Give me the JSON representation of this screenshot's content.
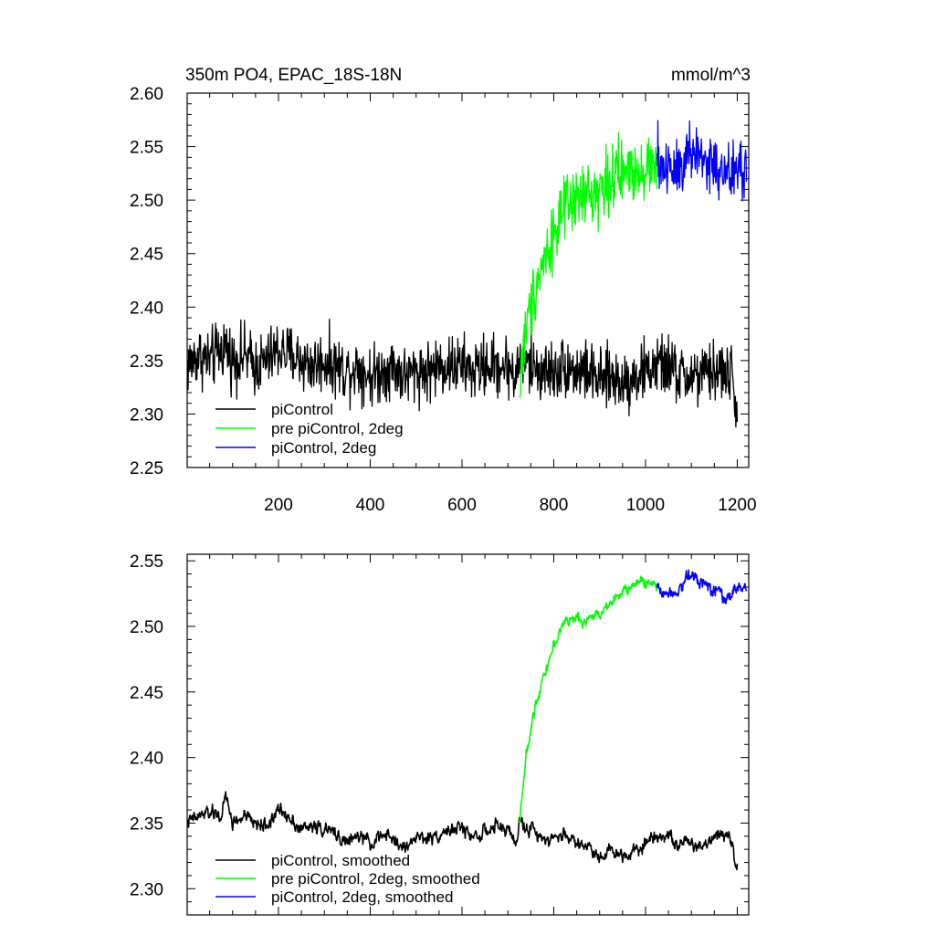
{
  "figure": {
    "title_left": "350m PO4, EPAC_18S-18N",
    "title_right": "mmol/m^3"
  },
  "colors": {
    "black": "#000000",
    "green": "#00ff00",
    "blue": "#0000ff"
  },
  "chart_data": [
    {
      "type": "line",
      "title": "350m PO4, EPAC_18S-18N",
      "units": "mmol/m^3",
      "xlim": [
        1,
        1225
      ],
      "ylim": [
        2.25,
        2.6
      ],
      "x_ticks": [
        200,
        400,
        600,
        800,
        1000,
        1200
      ],
      "y_ticks": [
        2.25,
        2.3,
        2.35,
        2.4,
        2.45,
        2.5,
        2.55,
        2.6
      ],
      "y_tick_labels": [
        "2.25",
        "2.30",
        "2.35",
        "2.40",
        "2.45",
        "2.50",
        "2.55",
        "2.60"
      ],
      "legend_position": "bottom-left",
      "series": [
        {
          "name": "piControl",
          "color": "#000000",
          "x": [
            1,
            25,
            50,
            75,
            85,
            100,
            125,
            150,
            175,
            200,
            225,
            250,
            275,
            300,
            325,
            350,
            375,
            400,
            425,
            450,
            475,
            500,
            525,
            550,
            575,
            600,
            625,
            650,
            675,
            700,
            720,
            725,
            750,
            775,
            800,
            825,
            850,
            875,
            900,
            925,
            950,
            975,
            1000,
            1025,
            1050,
            1075,
            1100,
            1125,
            1150,
            1175,
            1190,
            1195,
            1200
          ],
          "y": [
            2.345,
            2.355,
            2.35,
            2.36,
            2.365,
            2.35,
            2.355,
            2.345,
            2.35,
            2.36,
            2.355,
            2.35,
            2.345,
            2.35,
            2.345,
            2.34,
            2.345,
            2.335,
            2.34,
            2.345,
            2.335,
            2.34,
            2.34,
            2.345,
            2.345,
            2.345,
            2.34,
            2.345,
            2.345,
            2.345,
            2.335,
            2.35,
            2.345,
            2.34,
            2.34,
            2.345,
            2.34,
            2.34,
            2.33,
            2.335,
            2.33,
            2.335,
            2.34,
            2.345,
            2.345,
            2.335,
            2.335,
            2.335,
            2.34,
            2.34,
            2.335,
            2.3,
            2.315
          ],
          "noise": 0.014
        },
        {
          "name": "pre piControl, 2deg",
          "color": "#00ff00",
          "x": [
            725,
            730,
            740,
            750,
            760,
            775,
            800,
            825,
            850,
            875,
            900,
            925,
            950,
            975,
            1000,
            1025
          ],
          "y": [
            2.31,
            2.35,
            2.38,
            2.4,
            2.42,
            2.44,
            2.47,
            2.49,
            2.5,
            2.505,
            2.51,
            2.52,
            2.525,
            2.53,
            2.53,
            2.535
          ],
          "noise": 0.015
        },
        {
          "name": "piControl, 2deg",
          "color": "#0000ff",
          "x": [
            1025,
            1050,
            1075,
            1100,
            1125,
            1150,
            1175,
            1200,
            1220
          ],
          "y": [
            2.535,
            2.53,
            2.535,
            2.545,
            2.54,
            2.53,
            2.52,
            2.53,
            2.525
          ],
          "noise": 0.016
        }
      ]
    },
    {
      "type": "line",
      "xlim": [
        1,
        1225
      ],
      "ylim": [
        2.28,
        2.555
      ],
      "x_ticks": [
        200,
        400,
        600,
        800,
        1000,
        1200
      ],
      "y_ticks": [
        2.3,
        2.35,
        2.4,
        2.45,
        2.5,
        2.55
      ],
      "y_tick_labels": [
        "2.30",
        "2.35",
        "2.40",
        "2.45",
        "2.50",
        "2.55"
      ],
      "legend_position": "bottom-left",
      "series": [
        {
          "name": "piControl, smoothed",
          "color": "#000000",
          "x": [
            1,
            25,
            50,
            75,
            85,
            100,
            125,
            150,
            175,
            200,
            225,
            250,
            275,
            300,
            325,
            350,
            375,
            400,
            425,
            450,
            475,
            500,
            525,
            550,
            575,
            600,
            625,
            650,
            675,
            700,
            720,
            725,
            750,
            775,
            800,
            825,
            850,
            875,
            900,
            925,
            950,
            975,
            1000,
            1025,
            1050,
            1075,
            1100,
            1125,
            1150,
            1175,
            1190,
            1195,
            1200
          ],
          "y": [
            2.35,
            2.355,
            2.358,
            2.355,
            2.37,
            2.35,
            2.355,
            2.35,
            2.348,
            2.36,
            2.355,
            2.345,
            2.348,
            2.345,
            2.342,
            2.335,
            2.34,
            2.335,
            2.34,
            2.338,
            2.33,
            2.34,
            2.338,
            2.342,
            2.345,
            2.346,
            2.34,
            2.343,
            2.347,
            2.345,
            2.335,
            2.35,
            2.345,
            2.34,
            2.338,
            2.342,
            2.335,
            2.332,
            2.325,
            2.33,
            2.325,
            2.33,
            2.335,
            2.342,
            2.34,
            2.333,
            2.335,
            2.333,
            2.34,
            2.345,
            2.335,
            2.315,
            2.32
          ],
          "noise": 0.005
        },
        {
          "name": "pre piControl, 2deg, smoothed",
          "color": "#00ff00",
          "x": [
            725,
            730,
            740,
            750,
            760,
            775,
            800,
            825,
            850,
            875,
            900,
            925,
            950,
            975,
            1000,
            1025
          ],
          "y": [
            2.35,
            2.37,
            2.4,
            2.42,
            2.44,
            2.46,
            2.485,
            2.505,
            2.505,
            2.505,
            2.51,
            2.52,
            2.525,
            2.532,
            2.535,
            2.53
          ],
          "noise": 0.004
        },
        {
          "name": "piControl, 2deg, smoothed",
          "color": "#0000ff",
          "x": [
            1025,
            1050,
            1075,
            1100,
            1125,
            1150,
            1175,
            1200,
            1220
          ],
          "y": [
            2.53,
            2.525,
            2.53,
            2.54,
            2.535,
            2.528,
            2.52,
            2.53,
            2.528
          ],
          "noise": 0.005
        }
      ]
    }
  ]
}
